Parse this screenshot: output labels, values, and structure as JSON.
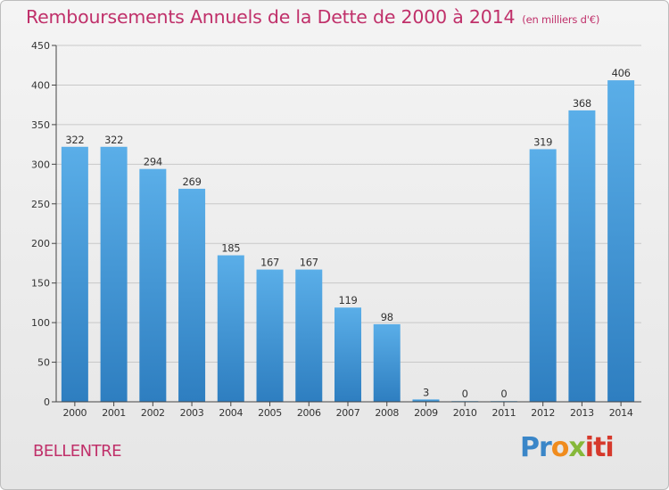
{
  "chart_data": {
    "type": "bar",
    "title": "Remboursements Annuels de la Dette de 2000 à 2014",
    "unit_label": "(en milliers d'€)",
    "categories": [
      "2000",
      "2001",
      "2002",
      "2003",
      "2004",
      "2005",
      "2006",
      "2007",
      "2008",
      "2009",
      "2010",
      "2011",
      "2012",
      "2013",
      "2014"
    ],
    "values": [
      322,
      322,
      294,
      269,
      185,
      167,
      167,
      119,
      98,
      3,
      0,
      0,
      319,
      368,
      406
    ],
    "ylim": [
      0,
      450
    ],
    "yticks": [
      0,
      50,
      100,
      150,
      200,
      250,
      300,
      350,
      400,
      450
    ],
    "xlabel": "",
    "ylabel": "",
    "grid": true,
    "colors": {
      "bar_top": "#5aaee8",
      "bar_bottom": "#2e7ec0",
      "grid": "#c8c8c8",
      "axis": "#444444"
    }
  },
  "footer": {
    "commune": "BELLENTRE",
    "logo_parts": [
      "Pr",
      "o",
      "x",
      "iti"
    ]
  }
}
